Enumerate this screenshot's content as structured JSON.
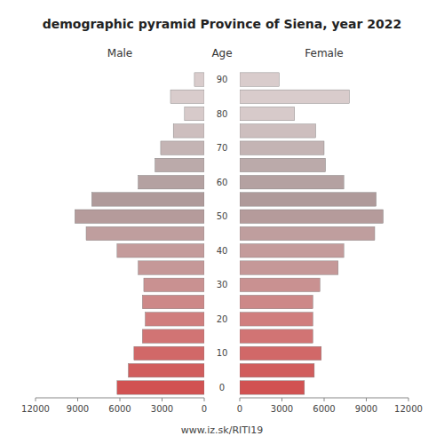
{
  "chart_data": {
    "type": "bar",
    "orientation": "horizontal",
    "title": "demographic pyramid Province of Siena, year 2022",
    "ylabel": "Age",
    "annotations": [
      "www.iz.sk/RITI19"
    ],
    "categories": [
      "0",
      null,
      "10",
      null,
      "20",
      null,
      "30",
      null,
      "40",
      null,
      "50",
      null,
      "60",
      null,
      "70",
      null,
      "80",
      null,
      "90"
    ],
    "series": [
      {
        "name": "Male",
        "values": [
          6200,
          5400,
          5000,
          4400,
          4200,
          4400,
          4300,
          4700,
          6200,
          8400,
          9200,
          8000,
          4700,
          3500,
          3100,
          2200,
          1400,
          2400,
          700
        ],
        "colors": [
          "#d15252",
          "#d15d5d",
          "#d16868",
          "#d17474",
          "#d07e7e",
          "#cd8888",
          "#c99191",
          "#c59898",
          "#c49b9b",
          "#bf9e9e",
          "#b59b9b",
          "#af9a9a",
          "#b4a1a1",
          "#bbaaaa",
          "#c4b4b4",
          "#cdbebe",
          "#d7caca",
          "#d9cccc",
          "#d9cccc"
        ]
      },
      {
        "name": "Female",
        "values": [
          4600,
          5300,
          5800,
          5200,
          5200,
          5200,
          5700,
          7000,
          7400,
          9600,
          10200,
          9700,
          7400,
          6100,
          6000,
          5400,
          3900,
          7800,
          2800
        ],
        "colors": [
          "#d15252",
          "#d15d5d",
          "#d16868",
          "#d17474",
          "#d07e7e",
          "#cd8888",
          "#c99191",
          "#c59898",
          "#c49b9b",
          "#bf9e9e",
          "#b59b9b",
          "#af9a9a",
          "#b4a1a1",
          "#bbaaaa",
          "#c4b4b4",
          "#cdbebe",
          "#d7caca",
          "#d9cccc",
          "#d9cccc"
        ]
      }
    ],
    "xlim": [
      0,
      12000
    ],
    "xticks": [
      0,
      3000,
      6000,
      9000,
      12000
    ]
  }
}
